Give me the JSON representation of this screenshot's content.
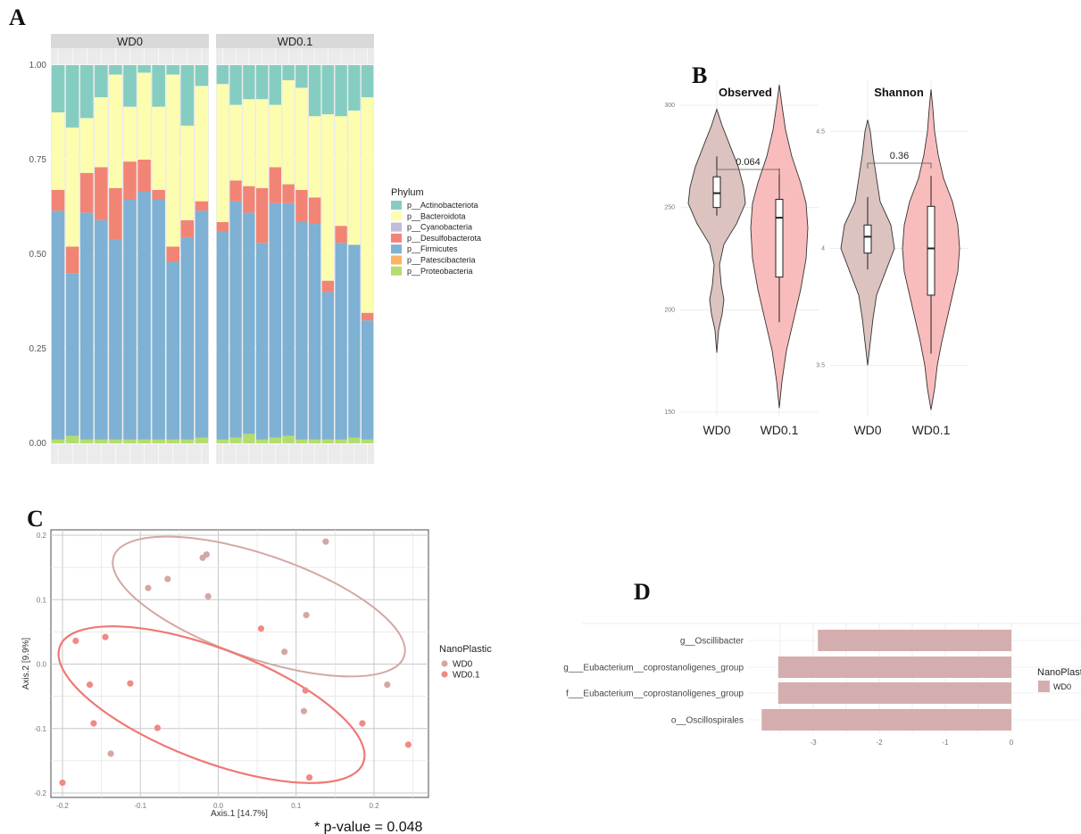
{
  "panel_labels": {
    "a": "A",
    "b": "B",
    "c": "C",
    "d": "D"
  },
  "pvalue_note": "* p-value = 0.048",
  "chart_data": [
    {
      "type": "bar",
      "subtype": "stacked-relative-abundance",
      "facets": [
        "WD0",
        "WD0.1"
      ],
      "y_ticks": [
        "0.00",
        "0.25",
        "0.50",
        "0.75",
        "1.00"
      ],
      "ylim": [
        0,
        1
      ],
      "legend_title": "Phylum",
      "legend_position": "right",
      "series": [
        {
          "name": "p__Actinobacteriota",
          "color": "#86cdc1"
        },
        {
          "name": "p__Bacteroidota",
          "color": "#fdfdaf"
        },
        {
          "name": "p__Cyanobacteria",
          "color": "#c2bcd8"
        },
        {
          "name": "p__Desulfobacterota",
          "color": "#f28476"
        },
        {
          "name": "p__Firmicutes",
          "color": "#7eb1d3"
        },
        {
          "name": "p__Patescibacteria",
          "color": "#fbb466"
        },
        {
          "name": "p__Proteobacteria",
          "color": "#b3dd6e"
        }
      ],
      "samples": {
        "WD0": [
          [
            0.125,
            0.205,
            0,
            0.055,
            0.605,
            0,
            0.01
          ],
          [
            0.165,
            0.315,
            0,
            0.07,
            0.43,
            0,
            0.02
          ],
          [
            0.14,
            0.145,
            0,
            0.105,
            0.6,
            0,
            0.01
          ],
          [
            0.085,
            0.185,
            0,
            0.14,
            0.58,
            0,
            0.01
          ],
          [
            0.025,
            0.3,
            0,
            0.135,
            0.53,
            0,
            0.01
          ],
          [
            0.11,
            0.145,
            0,
            0.1,
            0.635,
            0,
            0.01
          ],
          [
            0.02,
            0.23,
            0,
            0.085,
            0.655,
            0,
            0.01
          ],
          [
            0.11,
            0.22,
            0,
            0.025,
            0.635,
            0,
            0.01
          ],
          [
            0.025,
            0.455,
            0,
            0.04,
            0.47,
            0,
            0.01
          ],
          [
            0.16,
            0.25,
            0,
            0.045,
            0.535,
            0,
            0.01
          ],
          [
            0.055,
            0.305,
            0,
            0.025,
            0.6,
            0,
            0.015
          ]
        ],
        "WD0.1": [
          [
            0.05,
            0.365,
            0,
            0.025,
            0.55,
            0,
            0.01
          ],
          [
            0.105,
            0.2,
            0,
            0.055,
            0.625,
            0,
            0.015
          ],
          [
            0.09,
            0.23,
            0,
            0.07,
            0.585,
            0,
            0.025
          ],
          [
            0.09,
            0.235,
            0,
            0.145,
            0.52,
            0,
            0.01
          ],
          [
            0.105,
            0.165,
            0,
            0.095,
            0.62,
            0,
            0.015
          ],
          [
            0.04,
            0.275,
            0,
            0.05,
            0.615,
            0,
            0.02
          ],
          [
            0.06,
            0.27,
            0,
            0.085,
            0.575,
            0,
            0.01
          ],
          [
            0.135,
            0.215,
            0,
            0.07,
            0.57,
            0,
            0.01
          ],
          [
            0.13,
            0.44,
            0,
            0.03,
            0.39,
            0,
            0.01
          ],
          [
            0.135,
            0.29,
            0,
            0.045,
            0.52,
            0,
            0.01
          ],
          [
            0.12,
            0.355,
            0,
            0,
            0.51,
            0,
            0.015
          ],
          [
            0.085,
            0.57,
            0,
            0.02,
            0.315,
            0,
            0.01
          ]
        ]
      }
    },
    {
      "type": "violin",
      "metric": "Observed",
      "groups": [
        "WD0",
        "WD0.1"
      ],
      "y_ticks": [
        150,
        200,
        250,
        300
      ],
      "ylim": [
        150,
        310
      ],
      "pvalue": "0.064",
      "box": {
        "WD0": {
          "min": 246,
          "q1": 250,
          "median": 257,
          "q3": 265,
          "max": 275
        },
        "WD0.1": {
          "min": 194,
          "q1": 216,
          "median": 245,
          "q3": 254,
          "max": 269
        }
      }
    },
    {
      "type": "violin",
      "metric": "Shannon",
      "groups": [
        "WD0",
        "WD0.1"
      ],
      "y_ticks": [
        3.5,
        4.0,
        4.5
      ],
      "ylim": [
        3.3,
        4.7
      ],
      "pvalue": "0.36",
      "box": {
        "WD0": {
          "min": 3.91,
          "q1": 3.98,
          "median": 4.05,
          "q3": 4.1,
          "max": 4.22
        },
        "WD0.1": {
          "min": 3.55,
          "q1": 3.8,
          "median": 4.0,
          "q3": 4.18,
          "max": 4.31
        }
      }
    },
    {
      "type": "scatter",
      "subtype": "pcoa-ordination",
      "xlabel": "Axis.1  [14.7%]",
      "ylabel": "Axis.2  [9.9%]",
      "xlim": [
        -0.2,
        0.25
      ],
      "ylim": [
        -0.2,
        0.2
      ],
      "x_ticks": [
        "-0.2",
        "-0.1",
        "0.0",
        "0.1",
        "0.2"
      ],
      "y_ticks": [
        "-0.2",
        "-0.1",
        "0.0",
        "0.1",
        "0.2"
      ],
      "legend_title": "NanoPlastic",
      "legend_position": "right",
      "series": [
        {
          "name": "WD0",
          "color": "#d4a7a4",
          "points": [
            [
              -0.02,
              0.165
            ],
            [
              -0.015,
              0.17
            ],
            [
              -0.065,
              0.132
            ],
            [
              -0.09,
              0.118
            ],
            [
              -0.013,
              0.105
            ],
            [
              0.138,
              0.19
            ],
            [
              0.113,
              0.076
            ],
            [
              0.085,
              0.019
            ],
            [
              0.217,
              -0.032
            ],
            [
              0.11,
              -0.073
            ],
            [
              -0.138,
              -0.139
            ]
          ]
        },
        {
          "name": "WD0.1",
          "color": "#ef8a84",
          "points": [
            [
              -0.2,
              -0.184
            ],
            [
              -0.183,
              0.036
            ],
            [
              -0.145,
              0.042
            ],
            [
              -0.165,
              -0.032
            ],
            [
              -0.16,
              -0.092
            ],
            [
              -0.113,
              -0.03
            ],
            [
              -0.078,
              -0.099
            ],
            [
              0.055,
              0.055
            ],
            [
              0.112,
              -0.041
            ],
            [
              0.117,
              -0.176
            ],
            [
              0.185,
              -0.092
            ],
            [
              0.244,
              -0.125
            ]
          ]
        }
      ]
    },
    {
      "type": "bar",
      "subtype": "horizontal-lda",
      "categories": [
        "g__Oscillibacter",
        "g___Eubacterium__coprostanoligenes_group",
        "f___Eubacterium__coprostanoligenes_group",
        "o__Oscillospirales"
      ],
      "values": [
        -2.93,
        -3.53,
        -3.53,
        -3.78
      ],
      "x_ticks": [
        "-3",
        "-2",
        "-1",
        "0"
      ],
      "xlim": [
        -3.85,
        0.05
      ],
      "legend_title": "NanoPlastic",
      "legend_entry": "WD0",
      "color": "#d4aeae"
    }
  ]
}
